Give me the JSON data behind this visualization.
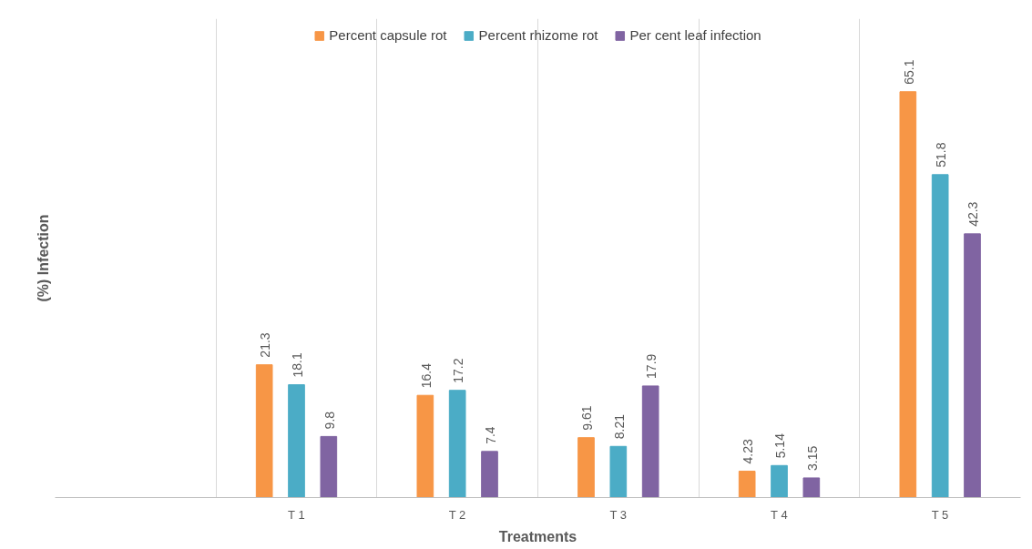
{
  "chart_data": {
    "type": "bar",
    "xlabel": "Treatments",
    "ylabel": "(%) Infection",
    "categories": [
      null,
      "T 1",
      "T 2",
      "T 3",
      "T 4",
      "T 5"
    ],
    "series": [
      {
        "name": "Percent capsule rot",
        "color": "#f79646",
        "values": [
          null,
          21.3,
          16.4,
          9.61,
          4.23,
          65.1
        ]
      },
      {
        "name": "Percent rhizome rot",
        "color": "#4bacc6",
        "values": [
          null,
          18.1,
          17.2,
          8.21,
          5.14,
          51.8
        ]
      },
      {
        "name": "Per cent leaf infection",
        "color": "#8064a2",
        "values": [
          null,
          9.8,
          7.4,
          17.9,
          3.15,
          42.3
        ]
      }
    ],
    "data_labels": true,
    "grid": "x",
    "legend": "top"
  }
}
